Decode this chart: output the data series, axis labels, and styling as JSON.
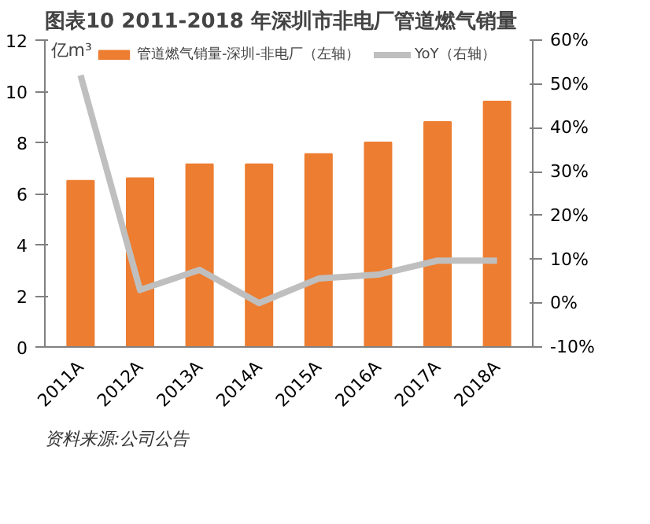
{
  "chart_data": {
    "type": "bar",
    "title": "图表10    2011-2018 年深圳市非电厂管道燃气销量",
    "categories": [
      "2011A",
      "2012A",
      "2013A",
      "2014A",
      "2015A",
      "2016A",
      "2017A",
      "2018A"
    ],
    "series": [
      {
        "name": "管道燃气销量-深圳-非电厂（左轴）",
        "color": "#ed7d31",
        "values": [
          6.5,
          6.6,
          7.15,
          7.15,
          7.55,
          8.0,
          8.8,
          9.6
        ]
      },
      {
        "name": "YoY（右轴）",
        "type": "line",
        "axis": "y2",
        "color": "#bfbfbf",
        "values": [
          52,
          3,
          7.6,
          0,
          5.6,
          6.5,
          9.7,
          9.7
        ]
      }
    ],
    "ylabel": "亿m³",
    "ylim": [
      0,
      12
    ],
    "yticks": [
      0,
      2,
      4,
      6,
      8,
      10,
      12
    ],
    "y2lim": [
      -10,
      60
    ],
    "y2ticks": [
      {
        "value": -10,
        "label": "-10%"
      },
      {
        "value": 0,
        "label": "0%"
      },
      {
        "value": 10,
        "label": "10%"
      },
      {
        "value": 20,
        "label": "20%"
      },
      {
        "value": 30,
        "label": "30%"
      },
      {
        "value": 40,
        "label": "40%"
      },
      {
        "value": 50,
        "label": "50%"
      },
      {
        "value": 60,
        "label": "60%"
      }
    ],
    "grid": false,
    "legend": "top",
    "annotations": [
      "资料来源:公司公告"
    ]
  }
}
